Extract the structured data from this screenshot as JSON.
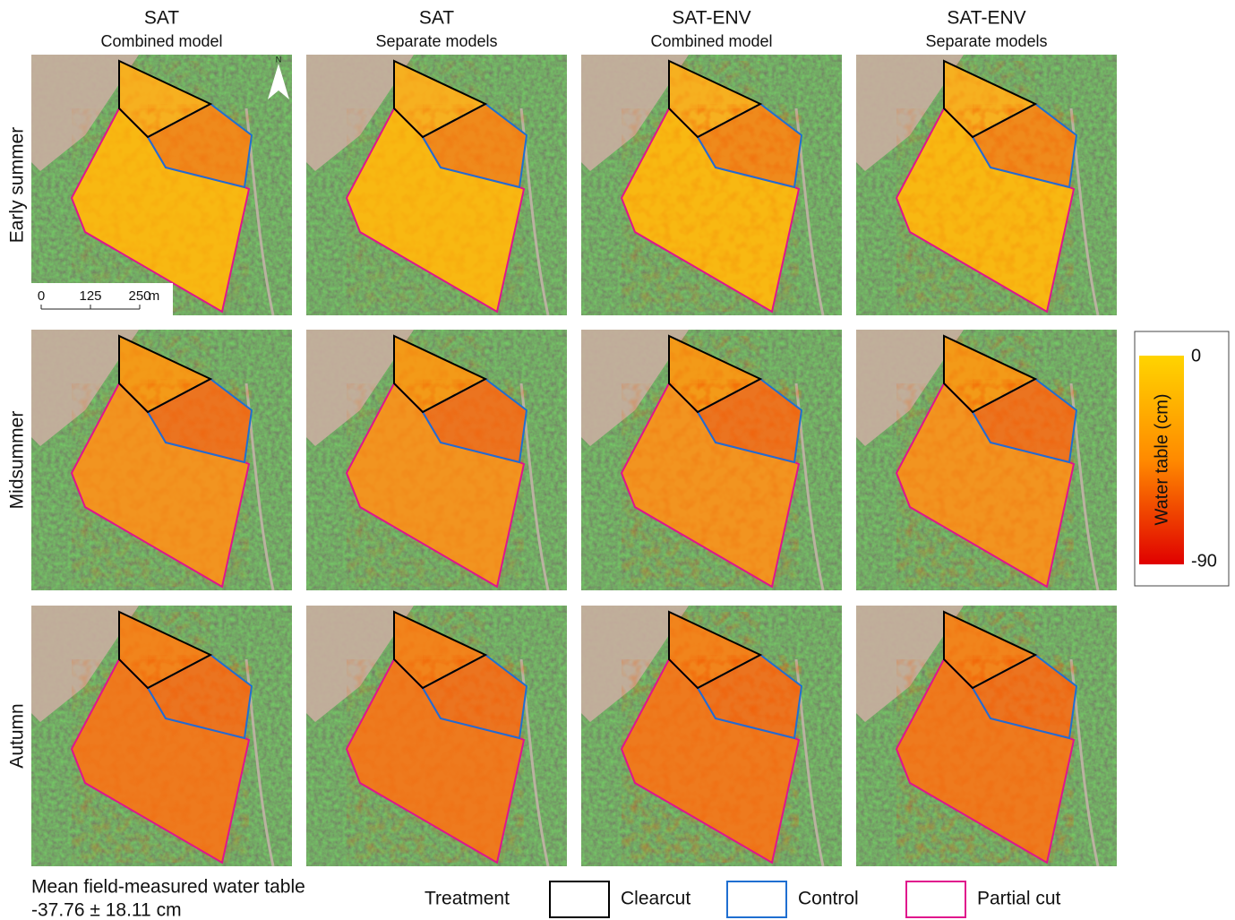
{
  "columns": [
    {
      "title": "SAT",
      "subtitle": "Combined model"
    },
    {
      "title": "SAT",
      "subtitle": "Separate models"
    },
    {
      "title": "SAT-ENV",
      "subtitle": "Combined model"
    },
    {
      "title": "SAT-ENV",
      "subtitle": "Separate models"
    }
  ],
  "rows": [
    "Early summer",
    "Midsummer",
    "Autumn"
  ],
  "north_arrow": "N",
  "scale_bar": {
    "ticks": [
      0,
      125,
      250
    ],
    "unit": "m"
  },
  "colorbar": {
    "title": "Water table (cm)",
    "max": 0,
    "min": -90
  },
  "footnote": {
    "line1": "Mean field-measured water table",
    "line2": "-37.76 ± 18.11 cm"
  },
  "legend": {
    "title": "Treatment",
    "items": [
      {
        "label": "Clearcut",
        "color": "#000000"
      },
      {
        "label": "Control",
        "color": "#1f6fd1"
      },
      {
        "label": "Partial cut",
        "color": "#e0158c"
      }
    ]
  }
}
